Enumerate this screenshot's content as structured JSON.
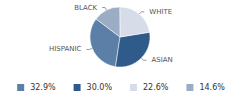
{
  "chart_data": {
    "type": "pie",
    "categories": [
      "HISPANIC",
      "ASIAN",
      "WHITE",
      "BLACK"
    ],
    "values": [
      32.9,
      30.0,
      22.6,
      14.6
    ],
    "value_labels": [
      "32.9%",
      "30.0%",
      "22.6%",
      "14.6%"
    ],
    "colors": [
      "#5b7fa7",
      "#2f5b8b",
      "#d6dde8",
      "#9aadc5"
    ],
    "legend": "bottom"
  }
}
